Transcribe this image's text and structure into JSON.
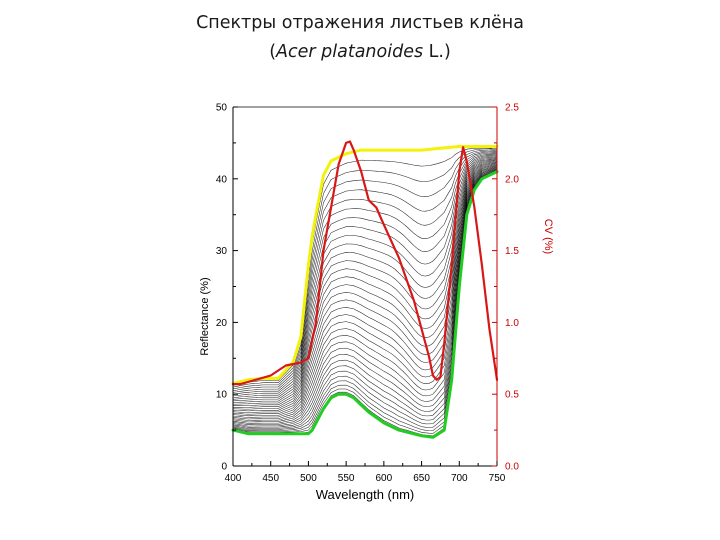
{
  "slide": {
    "title_line1": "Спектры отражения листьев клёна",
    "title_line2_prefix": "(",
    "title_line2_italic": "Acer platanoides",
    "title_line2_suffix": " L.)"
  },
  "chart_data": {
    "type": "line",
    "xlabel": "Wavelength (nm)",
    "ylabel": "Reflectance (%)",
    "y2label": "CV (%)",
    "xlim": [
      400,
      750
    ],
    "ylim": [
      0,
      50
    ],
    "y2lim": [
      0.0,
      2.5
    ],
    "x_ticks": [
      400,
      450,
      500,
      550,
      600,
      650,
      700,
      750
    ],
    "y_ticks": [
      0,
      10,
      20,
      30,
      40,
      50
    ],
    "y2_ticks": [
      "0.0",
      "0.5",
      "1.0",
      "1.5",
      "2.0",
      "2.5"
    ],
    "grid": false,
    "colors": {
      "upper_envelope": "#f2f20a",
      "lower_envelope": "#22cc22",
      "cv_curve": "#d81818",
      "spectra": "#000000",
      "right_axis": "#cc0000"
    },
    "series": [
      {
        "axis": "left",
        "x": [
          400,
          420,
          440,
          460,
          480,
          490,
          500,
          505,
          510,
          520,
          530,
          550,
          570,
          600,
          650,
          680,
          700,
          720,
          750
        ],
        "values": [
          11.5,
          12,
          12.2,
          12.2,
          14.5,
          18,
          28,
          32,
          35,
          40.5,
          42.5,
          43.5,
          44,
          44,
          44,
          44.3,
          44.5,
          44.5,
          44.5
        ]
      },
      {
        "axis": "left",
        "x": [
          400,
          420,
          440,
          460,
          480,
          500,
          505,
          510,
          520,
          530,
          540,
          550,
          560,
          570,
          580,
          600,
          620,
          650,
          665,
          680,
          690,
          700,
          710,
          720,
          730,
          750
        ],
        "values": [
          5,
          4.5,
          4.5,
          4.5,
          4.5,
          4.5,
          5,
          6,
          8,
          9.5,
          10,
          10,
          9.5,
          8.5,
          7.5,
          6,
          5,
          4.2,
          4,
          5,
          12,
          25,
          35,
          38.5,
          40,
          41
        ]
      },
      {
        "axis": "right",
        "x": [
          400,
          410,
          430,
          450,
          470,
          490,
          500,
          510,
          520,
          540,
          550,
          555,
          560,
          570,
          580,
          590,
          600,
          620,
          640,
          660,
          665,
          670,
          675,
          680,
          690,
          700,
          705,
          710,
          720,
          730,
          740,
          750
        ],
        "values": [
          0.57,
          0.57,
          0.6,
          0.63,
          0.7,
          0.72,
          0.75,
          1.0,
          1.5,
          2.1,
          2.25,
          2.26,
          2.2,
          2.05,
          1.85,
          1.8,
          1.68,
          1.45,
          1.15,
          0.76,
          0.63,
          0.6,
          0.62,
          0.85,
          1.4,
          2.05,
          2.22,
          2.12,
          1.8,
          1.4,
          0.95,
          0.6
        ]
      }
    ]
  }
}
